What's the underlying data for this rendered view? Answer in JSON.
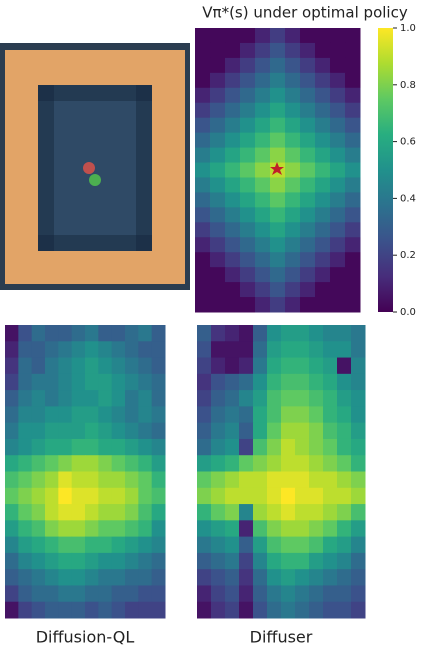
{
  "chart_data": [
    {
      "type": "heatmap",
      "title": "Vπ*(s) under optimal policy",
      "colormap": "viridis",
      "vlim": [
        0,
        1
      ],
      "colorbar_ticks": [
        {
          "value": 0,
          "label": "0.0"
        },
        0.2,
        0.4,
        0.6,
        0.8,
        {
          "value": 1,
          "label": "1.0"
        }
      ],
      "values": [
        [
          0.02,
          0.02,
          0.02,
          0.02,
          0.1,
          0.18,
          0.1,
          0.02,
          0.02,
          0.02,
          0.02
        ],
        [
          0.02,
          0.02,
          0.02,
          0.1,
          0.18,
          0.26,
          0.18,
          0.1,
          0.02,
          0.02,
          0.02
        ],
        [
          0.02,
          0.02,
          0.1,
          0.18,
          0.26,
          0.34,
          0.26,
          0.18,
          0.1,
          0.02,
          0.02
        ],
        [
          0.02,
          0.1,
          0.18,
          0.26,
          0.34,
          0.42,
          0.34,
          0.26,
          0.18,
          0.1,
          0.02
        ],
        [
          0.1,
          0.18,
          0.26,
          0.34,
          0.42,
          0.5,
          0.42,
          0.34,
          0.26,
          0.18,
          0.1
        ],
        [
          0.18,
          0.26,
          0.34,
          0.42,
          0.5,
          0.58,
          0.5,
          0.42,
          0.34,
          0.26,
          0.18
        ],
        [
          0.26,
          0.34,
          0.42,
          0.5,
          0.58,
          0.66,
          0.58,
          0.5,
          0.42,
          0.34,
          0.26
        ],
        [
          0.34,
          0.42,
          0.5,
          0.58,
          0.66,
          0.74,
          0.66,
          0.58,
          0.5,
          0.42,
          0.34
        ],
        [
          0.42,
          0.5,
          0.58,
          0.66,
          0.74,
          0.82,
          0.74,
          0.66,
          0.58,
          0.5,
          0.42
        ],
        [
          0.5,
          0.58,
          0.66,
          0.74,
          0.82,
          0.9,
          0.82,
          0.74,
          0.66,
          0.58,
          0.5
        ],
        [
          0.42,
          0.5,
          0.58,
          0.66,
          0.74,
          0.82,
          0.74,
          0.66,
          0.58,
          0.5,
          0.42
        ],
        [
          0.34,
          0.42,
          0.5,
          0.58,
          0.66,
          0.74,
          0.66,
          0.58,
          0.5,
          0.42,
          0.34
        ],
        [
          0.26,
          0.34,
          0.42,
          0.5,
          0.58,
          0.66,
          0.58,
          0.5,
          0.42,
          0.34,
          0.26
        ],
        [
          0.18,
          0.26,
          0.34,
          0.42,
          0.5,
          0.58,
          0.5,
          0.42,
          0.34,
          0.26,
          0.18
        ],
        [
          0.1,
          0.18,
          0.26,
          0.34,
          0.42,
          0.5,
          0.42,
          0.34,
          0.26,
          0.18,
          0.1
        ],
        [
          0.02,
          0.1,
          0.18,
          0.26,
          0.34,
          0.42,
          0.34,
          0.26,
          0.18,
          0.1,
          0.02
        ],
        [
          0.02,
          0.02,
          0.1,
          0.18,
          0.26,
          0.34,
          0.26,
          0.18,
          0.1,
          0.02,
          0.02
        ],
        [
          0.02,
          0.02,
          0.02,
          0.1,
          0.18,
          0.26,
          0.18,
          0.1,
          0.02,
          0.02,
          0.02
        ],
        [
          0.02,
          0.02,
          0.02,
          0.02,
          0.1,
          0.18,
          0.1,
          0.02,
          0.02,
          0.02,
          0.02
        ]
      ]
    },
    {
      "type": "heatmap",
      "caption": "Diffusion-QL",
      "colormap": "viridis",
      "vlim": [
        0,
        1
      ],
      "values": [
        [
          0.05,
          0.25,
          0.35,
          0.3,
          0.3,
          0.35,
          0.4,
          0.3,
          0.3,
          0.35,
          0.4,
          0.3
        ],
        [
          0.1,
          0.3,
          0.3,
          0.35,
          0.4,
          0.45,
          0.5,
          0.45,
          0.4,
          0.35,
          0.3,
          0.3
        ],
        [
          0.15,
          0.35,
          0.3,
          0.4,
          0.45,
          0.5,
          0.55,
          0.5,
          0.45,
          0.4,
          0.35,
          0.3
        ],
        [
          0.2,
          0.35,
          0.4,
          0.4,
          0.45,
          0.5,
          0.55,
          0.55,
          0.5,
          0.45,
          0.4,
          0.35
        ],
        [
          0.3,
          0.4,
          0.45,
          0.4,
          0.45,
          0.5,
          0.5,
          0.55,
          0.5,
          0.4,
          0.45,
          0.35
        ],
        [
          0.35,
          0.45,
          0.45,
          0.5,
          0.5,
          0.55,
          0.55,
          0.5,
          0.45,
          0.4,
          0.45,
          0.4
        ],
        [
          0.4,
          0.5,
          0.5,
          0.55,
          0.55,
          0.55,
          0.6,
          0.55,
          0.5,
          0.45,
          0.4,
          0.35
        ],
        [
          0.45,
          0.5,
          0.55,
          0.6,
          0.6,
          0.65,
          0.65,
          0.6,
          0.6,
          0.55,
          0.5,
          0.45
        ],
        [
          0.6,
          0.65,
          0.7,
          0.75,
          0.8,
          0.85,
          0.85,
          0.8,
          0.75,
          0.7,
          0.65,
          0.55
        ],
        [
          0.7,
          0.75,
          0.8,
          0.85,
          0.95,
          0.9,
          0.9,
          0.85,
          0.85,
          0.8,
          0.75,
          0.65
        ],
        [
          0.75,
          0.8,
          0.85,
          0.9,
          1.0,
          0.95,
          0.95,
          0.9,
          0.9,
          0.85,
          0.75,
          0.7
        ],
        [
          0.65,
          0.75,
          0.8,
          0.9,
          0.95,
          0.95,
          0.9,
          0.85,
          0.85,
          0.8,
          0.7,
          0.6
        ],
        [
          0.55,
          0.65,
          0.7,
          0.8,
          0.85,
          0.85,
          0.8,
          0.75,
          0.75,
          0.7,
          0.65,
          0.5
        ],
        [
          0.45,
          0.55,
          0.6,
          0.65,
          0.7,
          0.7,
          0.65,
          0.65,
          0.6,
          0.55,
          0.5,
          0.45
        ],
        [
          0.35,
          0.45,
          0.5,
          0.55,
          0.6,
          0.6,
          0.55,
          0.5,
          0.5,
          0.45,
          0.4,
          0.35
        ],
        [
          0.3,
          0.35,
          0.4,
          0.45,
          0.5,
          0.5,
          0.45,
          0.4,
          0.4,
          0.35,
          0.35,
          0.3
        ],
        [
          0.2,
          0.3,
          0.35,
          0.35,
          0.4,
          0.4,
          0.35,
          0.35,
          0.3,
          0.3,
          0.25,
          0.25
        ],
        [
          0.05,
          0.2,
          0.25,
          0.3,
          0.3,
          0.3,
          0.25,
          0.3,
          0.25,
          0.2,
          0.2,
          0.2
        ]
      ]
    },
    {
      "type": "heatmap",
      "caption": "Diffuser",
      "colormap": "viridis",
      "vlim": [
        0,
        1
      ],
      "values": [
        [
          0.3,
          0.15,
          0.1,
          0.05,
          0.3,
          0.5,
          0.55,
          0.55,
          0.5,
          0.45,
          0.45,
          0.4
        ],
        [
          0.25,
          0.05,
          0.05,
          0.05,
          0.35,
          0.55,
          0.6,
          0.6,
          0.55,
          0.5,
          0.5,
          0.4
        ],
        [
          0.2,
          0.1,
          0.05,
          0.1,
          0.4,
          0.6,
          0.65,
          0.65,
          0.6,
          0.55,
          0.05,
          0.45
        ],
        [
          0.15,
          0.25,
          0.3,
          0.35,
          0.5,
          0.65,
          0.7,
          0.7,
          0.65,
          0.6,
          0.5,
          0.45
        ],
        [
          0.2,
          0.3,
          0.35,
          0.45,
          0.55,
          0.7,
          0.75,
          0.75,
          0.7,
          0.65,
          0.55,
          0.5
        ],
        [
          0.25,
          0.35,
          0.4,
          0.35,
          0.6,
          0.7,
          0.8,
          0.8,
          0.75,
          0.65,
          0.6,
          0.5
        ],
        [
          0.3,
          0.4,
          0.45,
          0.3,
          0.6,
          0.75,
          0.85,
          0.85,
          0.8,
          0.7,
          0.65,
          0.55
        ],
        [
          0.35,
          0.45,
          0.5,
          0.2,
          0.7,
          0.8,
          0.9,
          0.85,
          0.8,
          0.75,
          0.65,
          0.6
        ],
        [
          0.55,
          0.6,
          0.65,
          0.75,
          0.8,
          0.85,
          0.9,
          0.9,
          0.85,
          0.8,
          0.75,
          0.65
        ],
        [
          0.75,
          0.8,
          0.85,
          0.9,
          0.9,
          0.95,
          0.95,
          0.95,
          0.9,
          0.9,
          0.85,
          0.8
        ],
        [
          0.8,
          0.85,
          0.9,
          0.9,
          0.9,
          0.95,
          1.0,
          0.95,
          0.95,
          0.9,
          0.9,
          0.85
        ],
        [
          0.65,
          0.75,
          0.8,
          0.45,
          0.85,
          0.9,
          0.95,
          0.9,
          0.9,
          0.85,
          0.8,
          0.7
        ],
        [
          0.5,
          0.55,
          0.6,
          0.1,
          0.7,
          0.8,
          0.85,
          0.85,
          0.8,
          0.75,
          0.65,
          0.55
        ],
        [
          0.4,
          0.45,
          0.5,
          0.3,
          0.55,
          0.7,
          0.75,
          0.75,
          0.7,
          0.6,
          0.55,
          0.45
        ],
        [
          0.3,
          0.35,
          0.4,
          0.2,
          0.45,
          0.6,
          0.65,
          0.65,
          0.55,
          0.5,
          0.45,
          0.35
        ],
        [
          0.2,
          0.25,
          0.3,
          0.15,
          0.35,
          0.5,
          0.55,
          0.5,
          0.45,
          0.4,
          0.35,
          0.3
        ],
        [
          0.1,
          0.2,
          0.25,
          0.1,
          0.3,
          0.4,
          0.45,
          0.4,
          0.35,
          0.3,
          0.3,
          0.25
        ],
        [
          0.05,
          0.15,
          0.2,
          0.05,
          0.25,
          0.35,
          0.4,
          0.35,
          0.3,
          0.25,
          0.25,
          0.2
        ]
      ]
    }
  ]
}
